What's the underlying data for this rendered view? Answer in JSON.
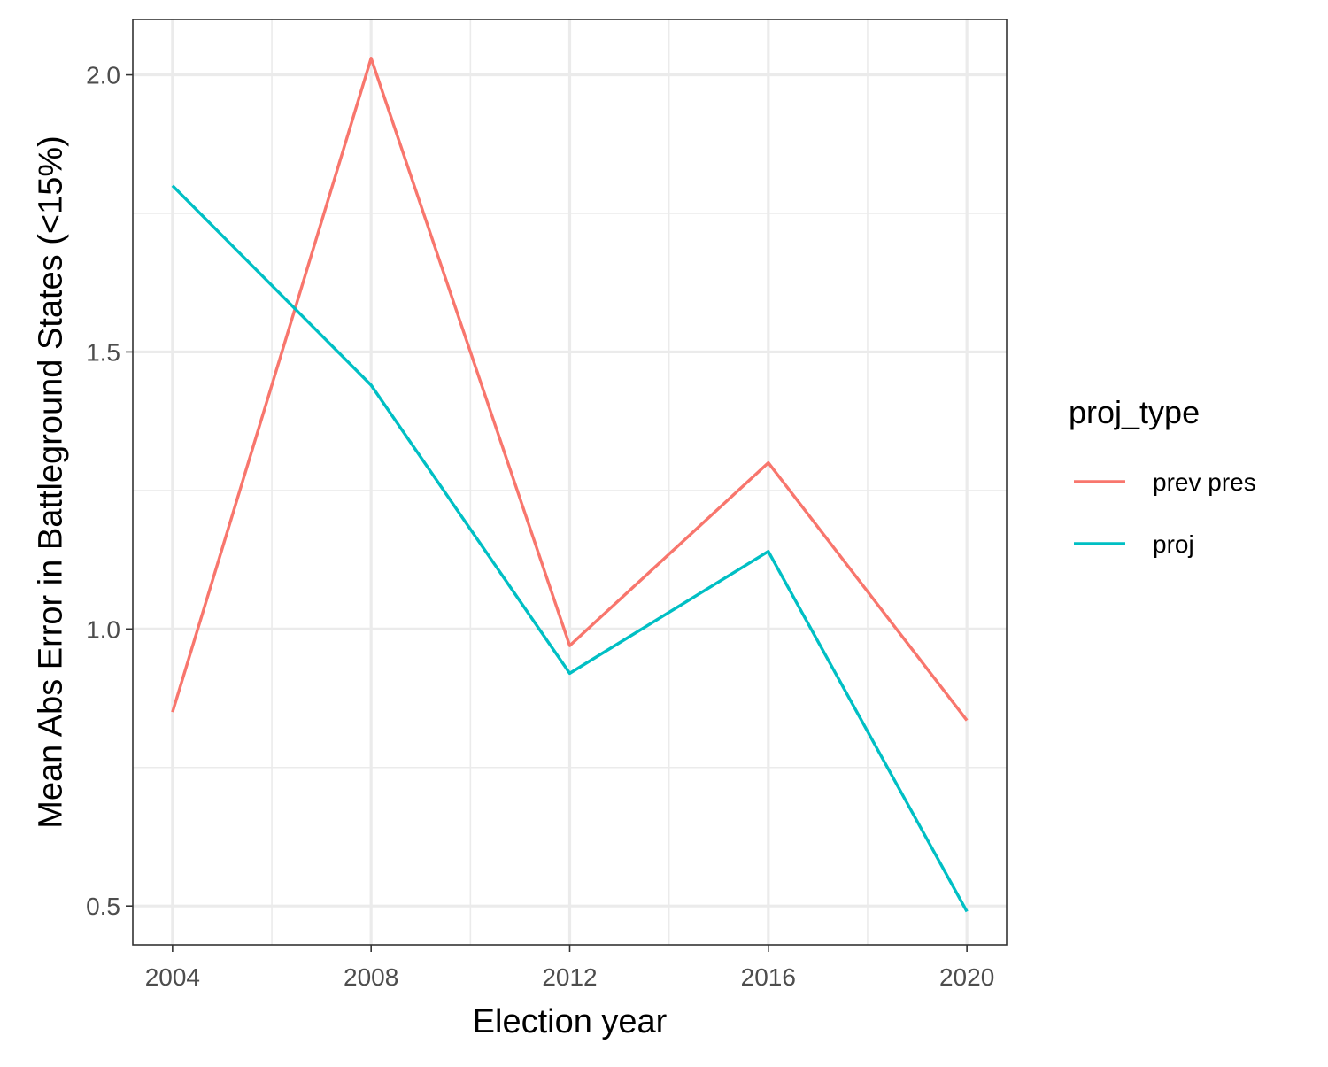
{
  "chart_data": {
    "type": "line",
    "title": "",
    "xlabel": "Election year",
    "ylabel": "Mean Abs Error in Battleground States (<15%)",
    "x": [
      2004,
      2008,
      2012,
      2016,
      2020
    ],
    "x_ticks": [
      "2004",
      "2008",
      "2012",
      "2016",
      "2020"
    ],
    "xlim": [
      2003.2,
      2020.8
    ],
    "y_ticks": [
      "0.5",
      "1.0",
      "1.5",
      "2.0"
    ],
    "ylim": [
      0.43,
      2.1
    ],
    "grid": true,
    "legend": {
      "title": "proj_type",
      "placement": "right"
    },
    "series": [
      {
        "name": "prev pres",
        "color": "#F8766D",
        "values": [
          0.85,
          2.03,
          0.97,
          1.3,
          0.835
        ]
      },
      {
        "name": "proj",
        "color": "#00BFC4",
        "values": [
          1.8,
          1.44,
          0.92,
          1.14,
          0.49
        ]
      }
    ]
  }
}
